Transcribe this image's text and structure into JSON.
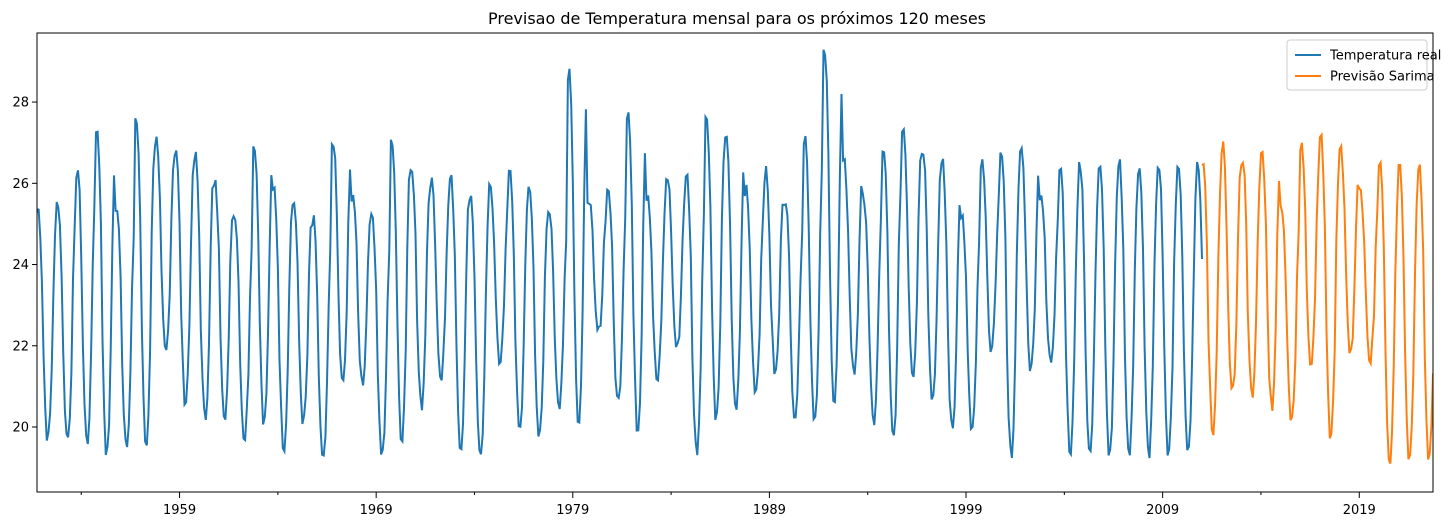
{
  "chart_data": {
    "type": "line",
    "title": "Previsao de Temperatura mensal para os próximos 120 meses",
    "xlabel": "",
    "ylabel": "",
    "xlim": [
      1951.75,
      2022.75
    ],
    "ylim": [
      18.4,
      29.7
    ],
    "x_ticks": [
      1959,
      1969,
      1979,
      1989,
      1999,
      2009,
      2019
    ],
    "y_ticks": [
      20,
      22,
      24,
      26,
      28
    ],
    "grid": false,
    "legend": "top-right",
    "series": [
      {
        "name": "Temperatura real",
        "color": "#1f77b4",
        "start": 1951.75,
        "end": 2011.0,
        "seed": 7,
        "peaks": [
          25.4,
          25.6,
          26.4,
          27.4,
          25.4,
          27.6,
          27.1,
          26.9,
          26.7,
          26.0,
          25.3,
          27.0,
          25.9,
          25.6,
          25.1,
          27.1,
          25.8,
          25.2,
          27.1,
          26.5,
          26.1,
          26.1,
          25.8,
          25.9,
          26.4,
          25.9,
          25.4,
          28.9,
          25.7,
          25.9,
          27.9,
          25.8,
          26.2,
          26.2,
          27.7,
          27.1,
          25.9,
          26.3,
          25.7,
          27.2,
          29.3,
          26.5,
          25.7,
          26.9,
          27.4,
          26.9,
          26.5,
          25.2,
          26.5,
          26.8,
          26.9,
          25.8,
          26.5
        ],
        "troughs": [
          19.7,
          19.7,
          19.6,
          19.3,
          19.6,
          19.5,
          21.8,
          20.6,
          20.2,
          20.3,
          19.7,
          20.1,
          19.5,
          20.1,
          19.1,
          21.0,
          21.1,
          19.3,
          19.7,
          20.5,
          21.2,
          19.5,
          19.2,
          21.6,
          19.8,
          19.7,
          20.5,
          20.1,
          22.3,
          20.6,
          19.9,
          21.1,
          21.9,
          19.4,
          20.2,
          20.3,
          20.9,
          21.3,
          20.3,
          20.2,
          20.6,
          21.3,
          20.1,
          19.7,
          21.3,
          20.7,
          19.9,
          19.9,
          21.9,
          19.3,
          21.4,
          21.6,
          19.3
        ]
      },
      {
        "name": "Previsão Sarima",
        "color": "#ff7f0e",
        "start": 2011.0,
        "end": 2022.75,
        "seed": 13,
        "peaks": [
          26.5,
          27.0,
          26.7,
          26.9,
          25.5,
          26.9,
          27.2,
          26.8,
          25.9,
          26.5
        ],
        "troughs": [
          19.9,
          20.8,
          20.7,
          20.5,
          20.2,
          21.5,
          19.7,
          21.8,
          21.6,
          19.2
        ]
      }
    ]
  }
}
